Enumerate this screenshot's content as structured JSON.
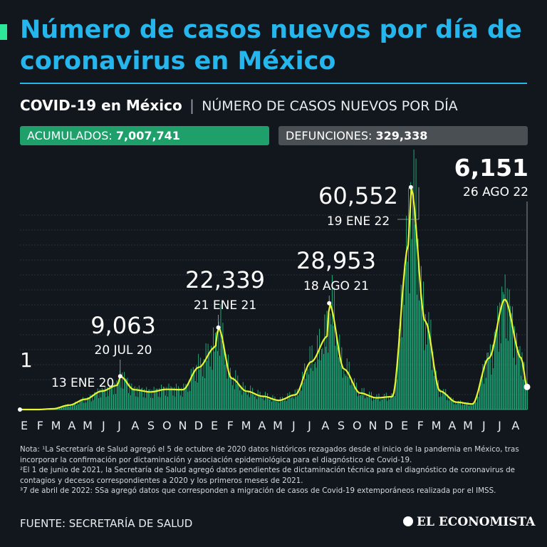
{
  "header": {
    "title": "Número de casos nuevos por día de coronavirus en México",
    "subtitle_bold": "COVID-19 en México",
    "subtitle_sep": "|",
    "subtitle_rest": "NÚMERO DE CASOS NUEVOS POR DÍA"
  },
  "stats": {
    "cumulative_label": "ACUMULADOS:",
    "cumulative_value": "7,007,741",
    "deaths_label": "DEFUNCIONES:",
    "deaths_value": "329,338"
  },
  "colors": {
    "background": "#11171d",
    "title": "#24b6ec",
    "bars": "#22c98b",
    "line": "#e7f531",
    "cumulative_box": "#1fa06a",
    "deaths_box": "#4a4f54"
  },
  "chart_data": {
    "type": "bar",
    "series_style": "daily bars with smoothed average line",
    "x_labels": [
      "E",
      "F",
      "M",
      "A",
      "M",
      "J",
      "J",
      "A",
      "S",
      "O",
      "N",
      "D",
      "E",
      "F",
      "M",
      "A",
      "M",
      "J",
      "J",
      "A",
      "S",
      "O",
      "N",
      "D",
      "E",
      "F",
      "M",
      "A",
      "M",
      "J",
      "J",
      "A"
    ],
    "x_range": [
      "2020-01-13",
      "2022-08-26"
    ],
    "ylim": [
      0,
      65000
    ],
    "grid": true,
    "annotations": [
      {
        "value": "1",
        "date": "13 ENE 20"
      },
      {
        "value": "9,063",
        "date": "20 JUL 20"
      },
      {
        "value": "22,339",
        "date": "21 ENE 21"
      },
      {
        "value": "28,953",
        "date": "18 AGO 21"
      },
      {
        "value": "60,552",
        "date": "19 ENE 22"
      },
      {
        "value": "6,151",
        "date": "26 AGO 22"
      }
    ],
    "monthly_avg": [
      {
        "month": "2020-01",
        "value": 0
      },
      {
        "month": "2020-02",
        "value": 0
      },
      {
        "month": "2020-03",
        "value": 200
      },
      {
        "month": "2020-04",
        "value": 1200
      },
      {
        "month": "2020-05",
        "value": 2800
      },
      {
        "month": "2020-06",
        "value": 5000
      },
      {
        "month": "2020-07",
        "value": 6600
      },
      {
        "month": "2020-08",
        "value": 5400
      },
      {
        "month": "2020-09",
        "value": 4800
      },
      {
        "month": "2020-10",
        "value": 5500
      },
      {
        "month": "2020-11",
        "value": 5400
      },
      {
        "month": "2020-12",
        "value": 11500
      },
      {
        "month": "2021-01",
        "value": 17000
      },
      {
        "month": "2021-02",
        "value": 8500
      },
      {
        "month": "2021-03",
        "value": 5000
      },
      {
        "month": "2021-04",
        "value": 3600
      },
      {
        "month": "2021-05",
        "value": 2500
      },
      {
        "month": "2021-06",
        "value": 4000
      },
      {
        "month": "2021-07",
        "value": 13000
      },
      {
        "month": "2021-08",
        "value": 20000
      },
      {
        "month": "2021-09",
        "value": 11000
      },
      {
        "month": "2021-10",
        "value": 4500
      },
      {
        "month": "2021-11",
        "value": 3200
      },
      {
        "month": "2021-12",
        "value": 3500
      },
      {
        "month": "2022-01",
        "value": 45000
      },
      {
        "month": "2022-02",
        "value": 24000
      },
      {
        "month": "2022-03",
        "value": 5000
      },
      {
        "month": "2022-04",
        "value": 2000
      },
      {
        "month": "2022-05",
        "value": 1500
      },
      {
        "month": "2022-06",
        "value": 14000
      },
      {
        "month": "2022-07",
        "value": 30000
      },
      {
        "month": "2022-08",
        "value": 14000
      }
    ]
  },
  "notes": {
    "line1": "Nota: ¹La Secretaría de Salud agregó el 5 de octubre de 2020 datos históricos rezagados desde el inicio de la pandemia en México, tras incorporar la confirmación por dictaminación y asociación epidemiológica para el diagnóstico de Covid-19.",
    "line2": "²El 1 de junio de 2021, la Secretaría de Salud agregó datos pendientes de dictaminación técnica para el diagnóstico de coronavirus de contagios y decesos correspondientes a 2020 y los primeros meses de 2021.",
    "line3": "³7 de abril de 2022: SSa agregó datos que corresponden a migración de casos de Covid-19 extemporáneos realizada por el IMSS."
  },
  "footer": {
    "source": "FUENTE: SECRETARÍA DE SALUD",
    "logo_text": "EL ECONOMISTA"
  }
}
